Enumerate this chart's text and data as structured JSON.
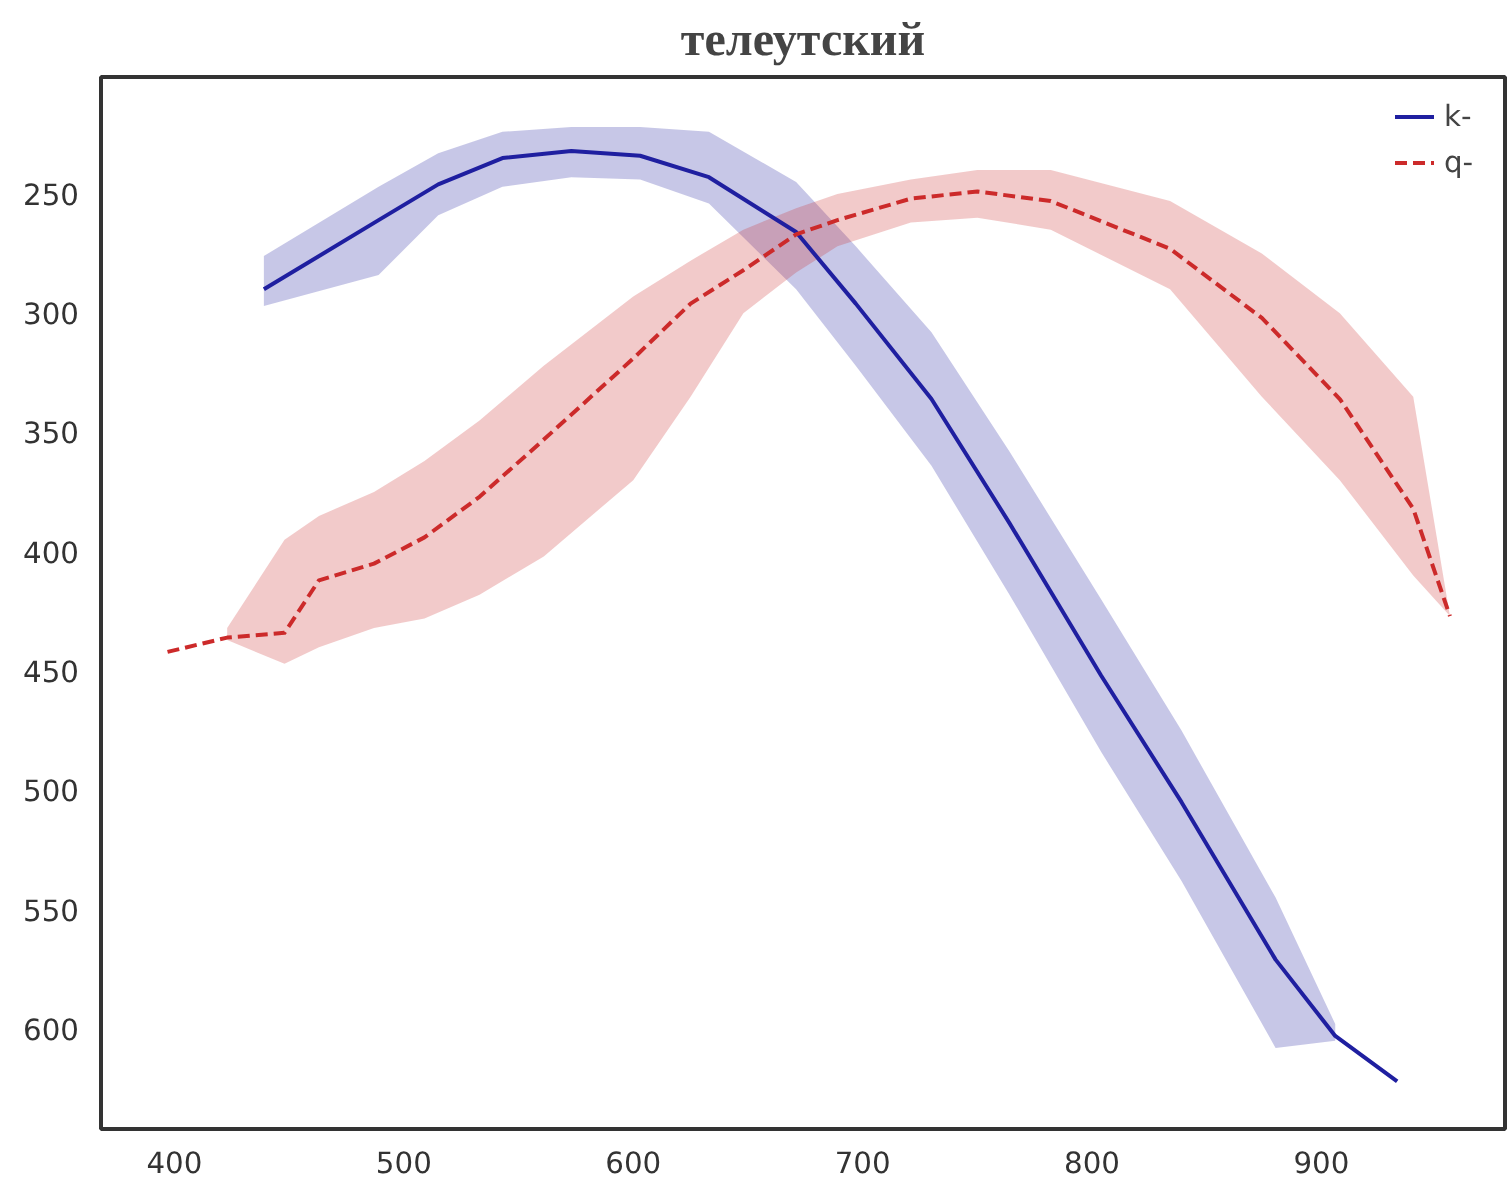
{
  "chart_data": {
    "type": "line",
    "title": "телеутский",
    "xlim": [
      368,
      980
    ],
    "ylim": [
      642,
      201
    ],
    "xticks": [
      400,
      500,
      600,
      700,
      800,
      900
    ],
    "yticks": [
      250,
      300,
      350,
      400,
      450,
      500,
      550,
      600
    ],
    "grid": false,
    "legend": "top right",
    "series": [
      {
        "name": "k-",
        "color": "#1f1fa0",
        "line_style": "solid",
        "x": [
          439,
          489,
          515,
          543,
          573,
          603,
          633,
          671,
          697,
          730,
          764,
          804,
          839,
          880,
          906,
          933
        ],
        "values": [
          290,
          261,
          246,
          235,
          232,
          234,
          243,
          266,
          296,
          336,
          388,
          452,
          505,
          571,
          603,
          622
        ],
        "lower": [
          276,
          247,
          233,
          224,
          222,
          222,
          224,
          245,
          272,
          308,
          358,
          420,
          475,
          545,
          598,
          null
        ],
        "upper": [
          297,
          284,
          259,
          247,
          243,
          244,
          254,
          290,
          322,
          364,
          418,
          484,
          538,
          608,
          605,
          null
        ]
      },
      {
        "name": "q-",
        "color": "#cc2a2a",
        "line_style": "dashed",
        "x": [
          397,
          423,
          448,
          463,
          487,
          509,
          533,
          561,
          600,
          625,
          648,
          671,
          689,
          721,
          750,
          782,
          834,
          874,
          908,
          940,
          956
        ],
        "values": [
          442,
          436,
          434,
          412,
          405,
          394,
          377,
          353,
          319,
          296,
          282,
          267,
          261,
          252,
          249,
          253,
          273,
          302,
          336,
          382,
          427
        ],
        "lower": [
          null,
          432,
          395,
          385,
          375,
          362,
          345,
          322,
          293,
          278,
          265,
          256,
          250,
          244,
          240,
          240,
          253,
          275,
          300,
          335,
          427
        ],
        "upper": [
          null,
          437,
          447,
          440,
          432,
          428,
          418,
          402,
          370,
          335,
          300,
          283,
          272,
          262,
          260,
          265,
          290,
          335,
          370,
          410,
          427
        ]
      }
    ]
  }
}
